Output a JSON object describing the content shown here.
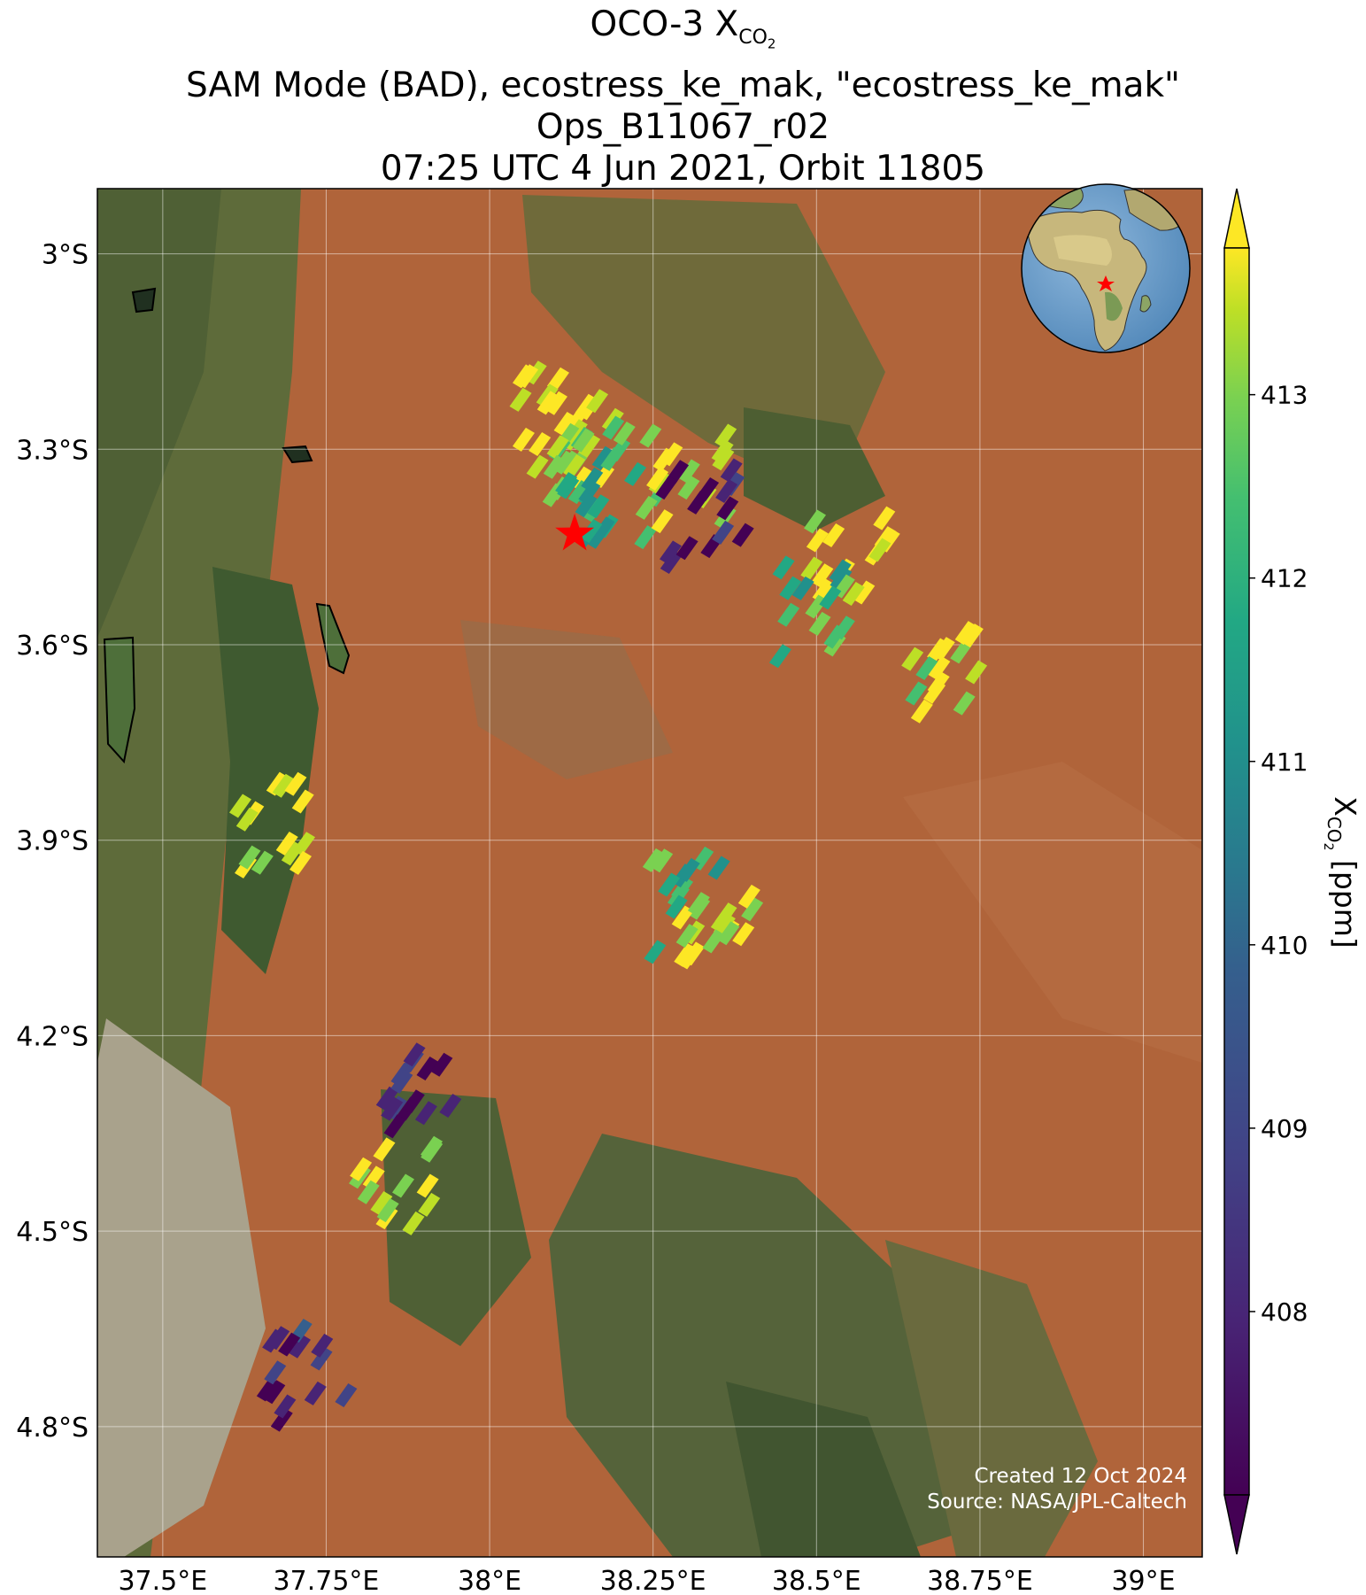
{
  "title": {
    "line1_prefix": "OCO-3 X",
    "line1_sub": "CO",
    "line1_sub2": "2",
    "line2": "SAM Mode (BAD), ecostress_ke_mak, \"ecostress_ke_mak\"",
    "line3": "Ops_B11067_r02",
    "line4": "07:25 UTC 4 Jun 2021, Orbit 11805"
  },
  "credits": {
    "created": "Created 12 Oct 2024",
    "source": "Source: NASA/JPL-Caltech"
  },
  "axes": {
    "lon_ticks": [
      "37.5°E",
      "37.75°E",
      "38°E",
      "38.25°E",
      "38.5°E",
      "38.75°E",
      "39°E"
    ],
    "lat_ticks": [
      "3°S",
      "3.3°S",
      "3.6°S",
      "3.9°S",
      "4.2°S",
      "4.5°S",
      "4.8°S"
    ],
    "lon_values": [
      37.5,
      37.75,
      38.0,
      38.25,
      38.5,
      38.75,
      39.0
    ],
    "lat_values": [
      -3.0,
      -3.3,
      -3.6,
      -3.9,
      -4.2,
      -4.5,
      -4.8
    ],
    "lon_range": [
      37.4,
      39.09
    ],
    "lat_range": [
      -2.9,
      -5.0
    ]
  },
  "colorbar": {
    "label_prefix": "X",
    "label_sub": "CO",
    "label_sub2": "2",
    "label_suffix": " [ppm]",
    "ticks": [
      "408",
      "409",
      "410",
      "411",
      "412",
      "413"
    ],
    "tick_values": [
      408,
      409,
      410,
      411,
      412,
      413
    ],
    "range": [
      407,
      413.8
    ],
    "colormap": "viridis",
    "extend": "both"
  },
  "target_marker": {
    "lon": 38.13,
    "lat": -3.43,
    "color": "#ff0000",
    "icon": "star-icon"
  },
  "inset_globe": {
    "icon": "globe-icon",
    "marker_color": "#ff0000"
  },
  "chart_data": {
    "type": "map",
    "basemap": "satellite imagery",
    "grid": true,
    "soundings_approx": [
      {
        "lon": 38.1,
        "lat": -3.25,
        "xco2": 413.5
      },
      {
        "lon": 38.12,
        "lat": -3.3,
        "xco2": 413.2
      },
      {
        "lon": 38.15,
        "lat": -3.33,
        "xco2": 412.0
      },
      {
        "lon": 38.2,
        "lat": -3.37,
        "xco2": 411.0
      },
      {
        "lon": 38.3,
        "lat": -3.35,
        "xco2": 413.4
      },
      {
        "lon": 38.33,
        "lat": -3.4,
        "xco2": 407.5
      },
      {
        "lon": 38.55,
        "lat": -3.47,
        "xco2": 413.6
      },
      {
        "lon": 38.5,
        "lat": -3.55,
        "xco2": 411.5
      },
      {
        "lon": 38.7,
        "lat": -3.65,
        "xco2": 413.0
      },
      {
        "lon": 38.35,
        "lat": -4.05,
        "xco2": 413.5
      },
      {
        "lon": 38.3,
        "lat": -4.0,
        "xco2": 411.5
      },
      {
        "lon": 37.85,
        "lat": -4.42,
        "xco2": 413.0
      },
      {
        "lon": 37.9,
        "lat": -4.3,
        "xco2": 407.8
      },
      {
        "lon": 37.72,
        "lat": -4.72,
        "xco2": 408.0
      },
      {
        "lon": 37.67,
        "lat": -3.87,
        "xco2": 413.6
      }
    ]
  }
}
